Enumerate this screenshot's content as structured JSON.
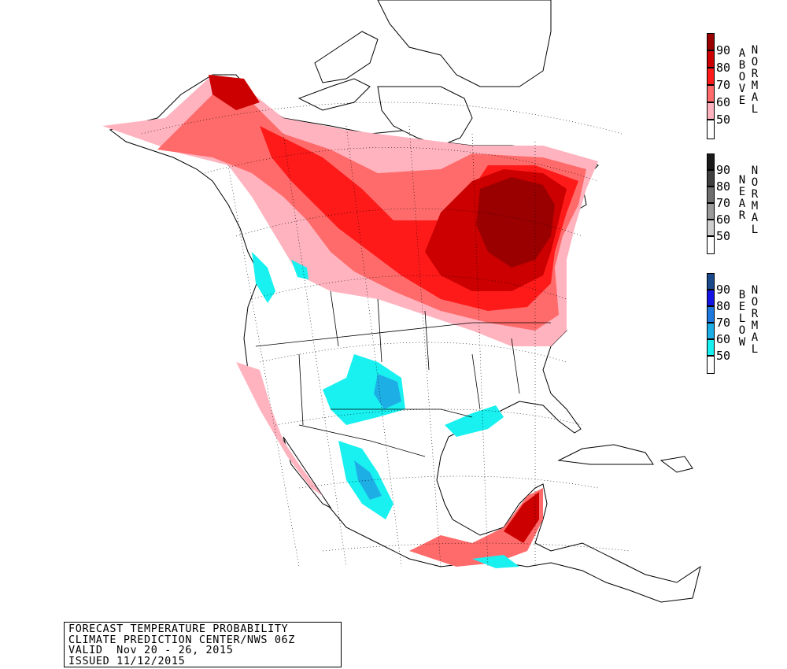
{
  "map": {
    "info_box": {
      "line1": "FORECAST TEMPERATURE PROBABILITY",
      "line2": "CLIMATE PREDICTION CENTER/NWS 06Z",
      "line3": "VALID  Nov 20 - 26, 2015",
      "line4": "ISSUED 11/12/2015"
    },
    "legends": [
      {
        "word1": "ABOVE",
        "word2": "NORMAL",
        "ticks": [
          "90",
          "80",
          "70",
          "60",
          "50"
        ],
        "colors": [
          "#9b0000",
          "#cc0000",
          "#ff1a1a",
          "#ff6b6b",
          "#ffb3bf",
          "#ffffff"
        ]
      },
      {
        "word1": "NEAR",
        "word2": "NORMAL",
        "ticks": [
          "90",
          "80",
          "70",
          "60",
          "50"
        ],
        "colors": [
          "#1a1a1a",
          "#404040",
          "#6e6e6e",
          "#9a9a9a",
          "#cfcfcf",
          "#ffffff"
        ]
      },
      {
        "word1": "BELOW",
        "word2": "NORMAL",
        "ticks": [
          "90",
          "80",
          "70",
          "60",
          "50"
        ],
        "colors": [
          "#1a4a8c",
          "#1414e6",
          "#1e78e0",
          "#1eaee6",
          "#19f0f0",
          "#ffffff"
        ]
      }
    ]
  }
}
